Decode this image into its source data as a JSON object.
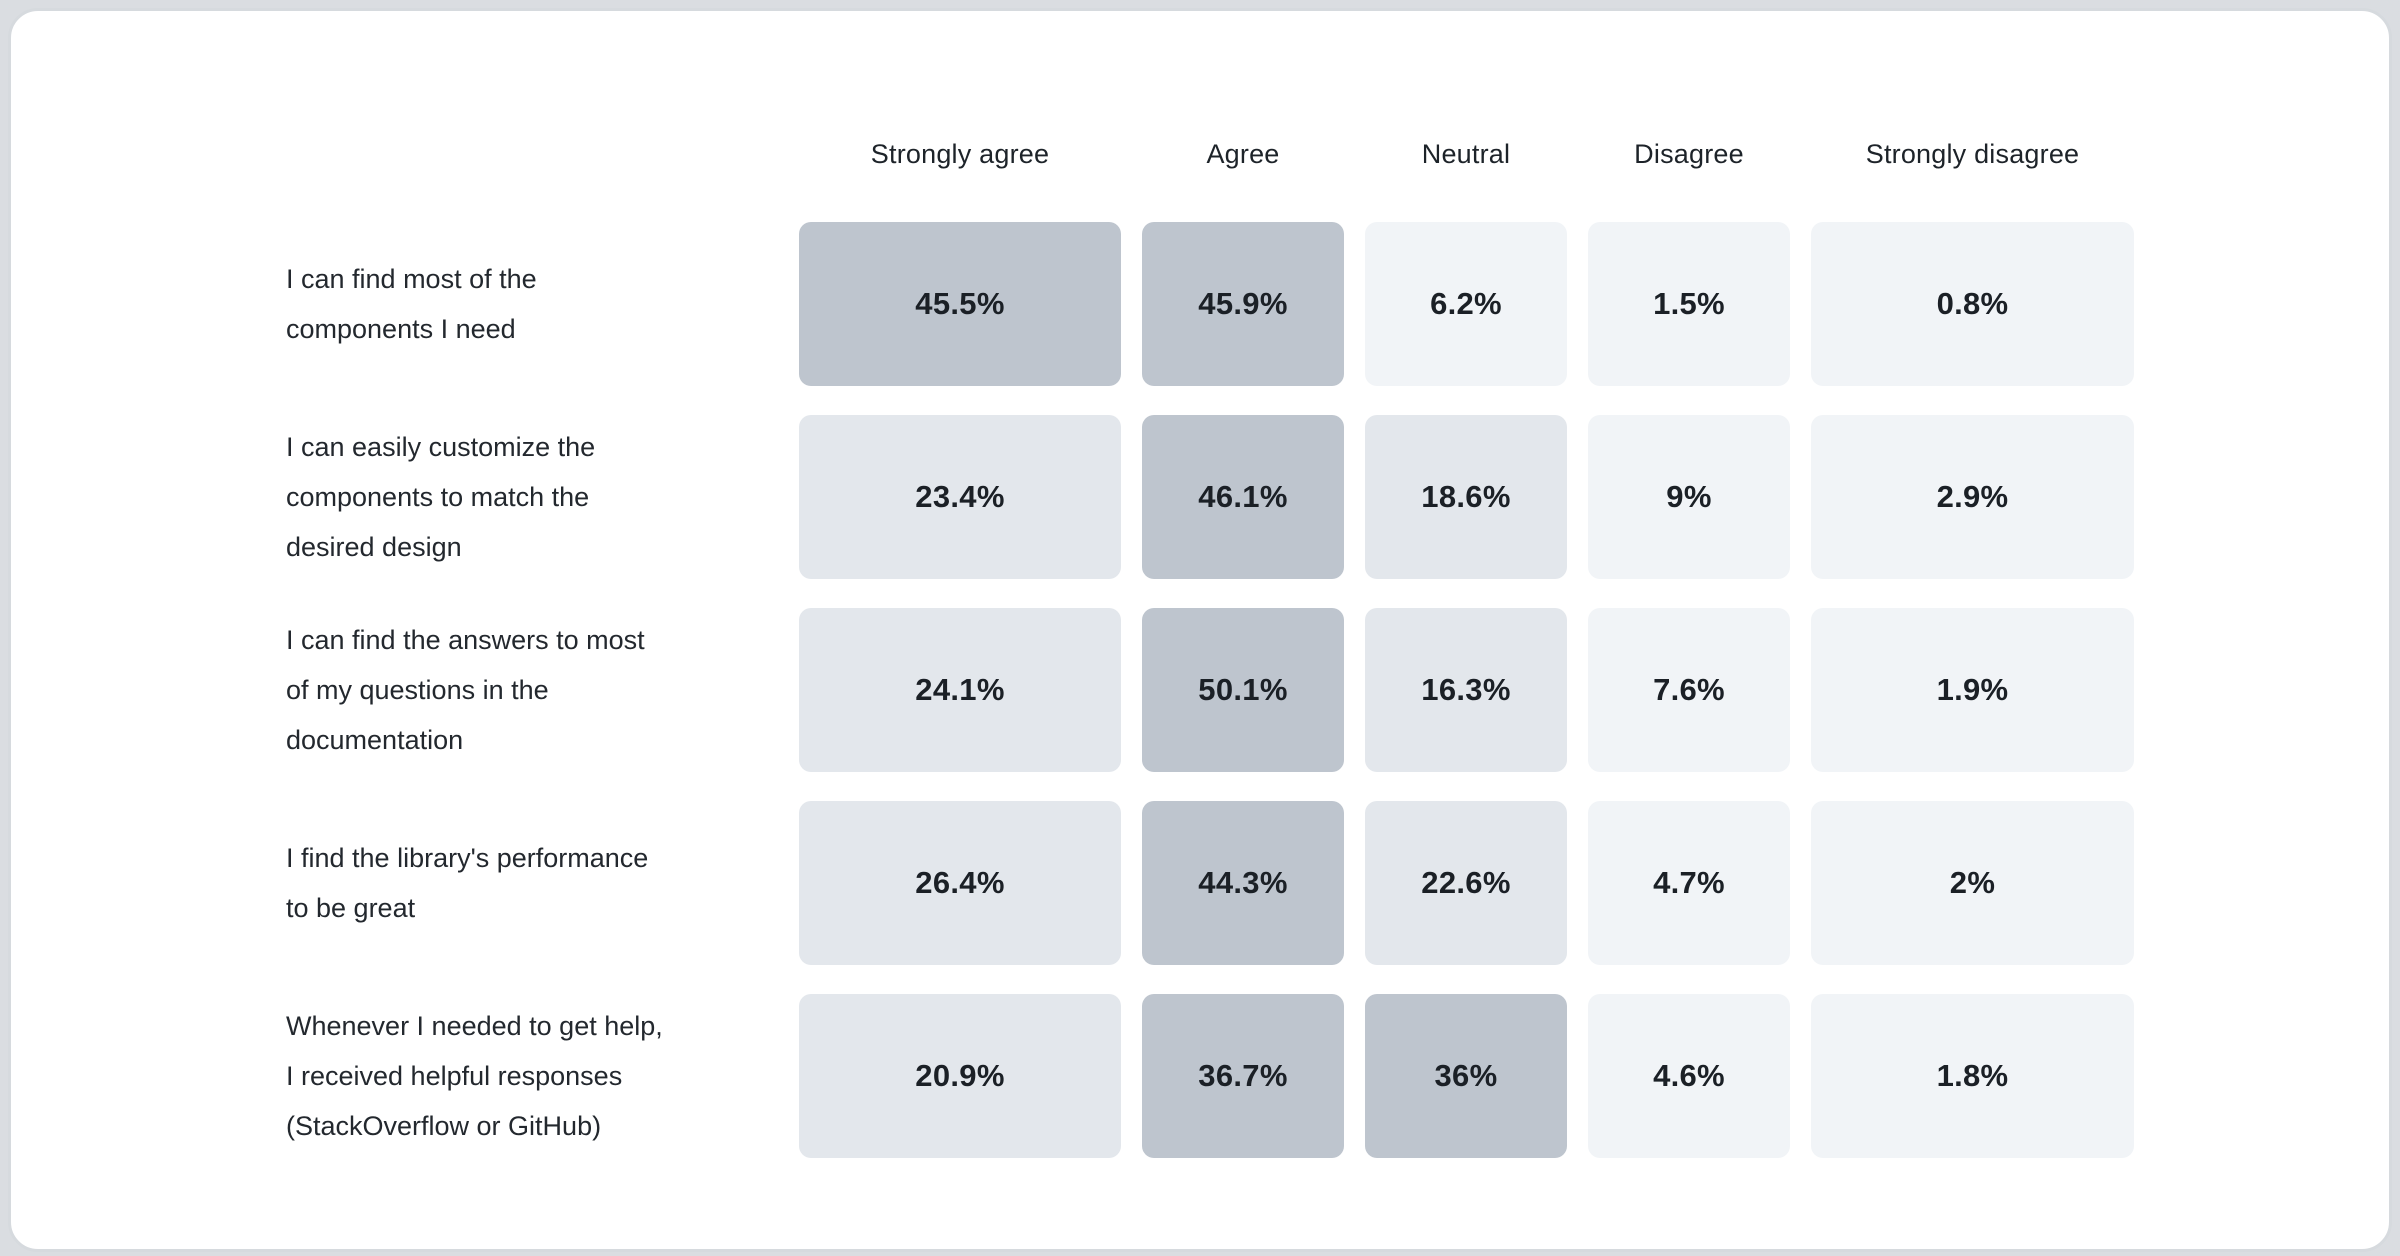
{
  "chart_data": {
    "type": "heatmap",
    "title": "",
    "columns": [
      "Strongly agree",
      "Agree",
      "Neutral",
      "Disagree",
      "Strongly disagree"
    ],
    "rows": [
      {
        "label": "I can find most of the\ncomponents I need",
        "values": [
          45.5,
          45.9,
          6.2,
          1.5,
          0.8
        ],
        "display": [
          "45.5%",
          "45.9%",
          "6.2%",
          "1.5%",
          "0.8%"
        ],
        "levels": [
          "high",
          "high",
          "low",
          "low",
          "low"
        ]
      },
      {
        "label": "I can easily customize the\ncomponents to match the\ndesired design",
        "values": [
          23.4,
          46.1,
          18.6,
          9,
          2.9
        ],
        "display": [
          "23.4%",
          "46.1%",
          "18.6%",
          "9%",
          "2.9%"
        ],
        "levels": [
          "mid",
          "high",
          "mid",
          "low",
          "low"
        ]
      },
      {
        "label": "I can find the answers to most\nof my questions in the\ndocumentation",
        "values": [
          24.1,
          50.1,
          16.3,
          7.6,
          1.9
        ],
        "display": [
          "24.1%",
          "50.1%",
          "16.3%",
          "7.6%",
          "1.9%"
        ],
        "levels": [
          "mid",
          "high",
          "mid",
          "low",
          "low"
        ]
      },
      {
        "label": "I find the library's performance\nto be great",
        "values": [
          26.4,
          44.3,
          22.6,
          4.7,
          2
        ],
        "display": [
          "26.4%",
          "44.3%",
          "22.6%",
          "4.7%",
          "2%"
        ],
        "levels": [
          "mid",
          "high",
          "mid",
          "low",
          "low"
        ]
      },
      {
        "label": "Whenever I needed to get help,\nI received helpful responses\n(StackOverflow or GitHub)",
        "values": [
          20.9,
          36.7,
          36,
          4.6,
          1.8
        ],
        "display": [
          "20.9%",
          "36.7%",
          "36%",
          "4.6%",
          "1.8%"
        ],
        "levels": [
          "mid",
          "high",
          "high",
          "low",
          "low"
        ]
      }
    ],
    "layout": {
      "legend": "none",
      "grid": "off",
      "value_format": "percent"
    },
    "colors": {
      "cell_high": "#bec5ce",
      "cell_mid": "#e3e7ec",
      "cell_low": "#f1f4f7",
      "card_background": "#ffffff",
      "card_border": "#d6dade",
      "text": "#23282e",
      "value_text": "#1b2026",
      "scale_note": "high >= 30%, mid 10-30%, low < 10%"
    }
  }
}
